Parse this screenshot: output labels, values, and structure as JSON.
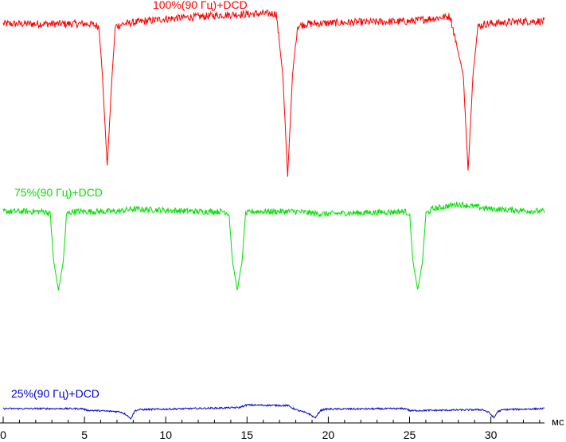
{
  "chart_data": {
    "type": "line",
    "xlabel": "мс",
    "xlim": [
      0,
      33.3
    ],
    "xticks": [
      0,
      5,
      10,
      15,
      20,
      25,
      30
    ],
    "grid": false,
    "series": [
      {
        "name": "100%(90 Гц)+DCD",
        "color": "#ff0000",
        "baseline": 0.0,
        "noise": 0.15,
        "points": [
          [
            0,
            0.0
          ],
          [
            5.3,
            0.0
          ],
          [
            5.9,
            -0.1
          ],
          [
            6.1,
            -2.0
          ],
          [
            6.4,
            -5.6
          ],
          [
            6.7,
            -2.0
          ],
          [
            6.9,
            -0.1
          ],
          [
            7.4,
            0.0
          ],
          [
            10,
            0.2
          ],
          [
            12.5,
            0.3
          ],
          [
            13.5,
            0.35
          ],
          [
            16.0,
            0.4
          ],
          [
            16.8,
            0.4
          ],
          [
            17.2,
            -2.0
          ],
          [
            17.5,
            -6.0
          ],
          [
            17.8,
            -2.0
          ],
          [
            18.1,
            -0.1
          ],
          [
            18.6,
            0.0
          ],
          [
            21.0,
            0.05
          ],
          [
            25.0,
            0.1
          ],
          [
            27.5,
            0.3
          ],
          [
            28.3,
            -2.0
          ],
          [
            28.6,
            -5.8
          ],
          [
            28.9,
            -2.0
          ],
          [
            29.2,
            -0.1
          ],
          [
            29.7,
            0.0
          ],
          [
            32.0,
            0.1
          ],
          [
            33.3,
            0.1
          ]
        ]
      },
      {
        "name": "75%(90 Гц)+DCD",
        "color": "#00e000",
        "baseline": 0.0,
        "noise": 0.12,
        "points": [
          [
            0,
            0.0
          ],
          [
            2.6,
            0.0
          ],
          [
            2.9,
            -0.1
          ],
          [
            3.1,
            -2.0
          ],
          [
            3.4,
            -3.2
          ],
          [
            3.7,
            -2.0
          ],
          [
            3.9,
            -0.1
          ],
          [
            4.3,
            0.0
          ],
          [
            7,
            0.0
          ],
          [
            8.0,
            0.1
          ],
          [
            12.0,
            0.0
          ],
          [
            13.6,
            0.0
          ],
          [
            13.9,
            -0.1
          ],
          [
            14.1,
            -2.0
          ],
          [
            14.4,
            -3.2
          ],
          [
            14.7,
            -2.0
          ],
          [
            14.9,
            -0.1
          ],
          [
            15.3,
            0.0
          ],
          [
            18.0,
            0.0
          ],
          [
            19.5,
            -0.1
          ],
          [
            24.7,
            0.0
          ],
          [
            25.0,
            -0.1
          ],
          [
            25.2,
            -2.0
          ],
          [
            25.5,
            -3.2
          ],
          [
            25.8,
            -2.0
          ],
          [
            26.0,
            -0.1
          ],
          [
            26.4,
            0.1
          ],
          [
            28.0,
            0.3
          ],
          [
            30.0,
            0.1
          ],
          [
            33.3,
            0.0
          ]
        ]
      },
      {
        "name": "25%(90 Гц)+DCD",
        "color": "#0000cc",
        "baseline": 0.0,
        "noise": 0.08,
        "points": [
          [
            0,
            0.0
          ],
          [
            4.9,
            0.0
          ],
          [
            5.1,
            -0.15
          ],
          [
            7.2,
            -0.3
          ],
          [
            7.6,
            -0.6
          ],
          [
            7.85,
            -1.0
          ],
          [
            8.1,
            -0.2
          ],
          [
            8.4,
            -0.1
          ],
          [
            10,
            -0.05
          ],
          [
            14.5,
            0.1
          ],
          [
            15.0,
            0.35
          ],
          [
            17.5,
            0.3
          ],
          [
            18.0,
            -0.1
          ],
          [
            18.8,
            -0.5
          ],
          [
            19.2,
            -0.9
          ],
          [
            19.5,
            -0.2
          ],
          [
            19.8,
            -0.05
          ],
          [
            24.8,
            0.0
          ],
          [
            25.0,
            -0.2
          ],
          [
            29.5,
            -0.1
          ],
          [
            29.9,
            -0.4
          ],
          [
            30.2,
            -0.9
          ],
          [
            30.4,
            -0.3
          ],
          [
            30.8,
            -0.1
          ],
          [
            33.3,
            0.0
          ]
        ]
      }
    ]
  }
}
